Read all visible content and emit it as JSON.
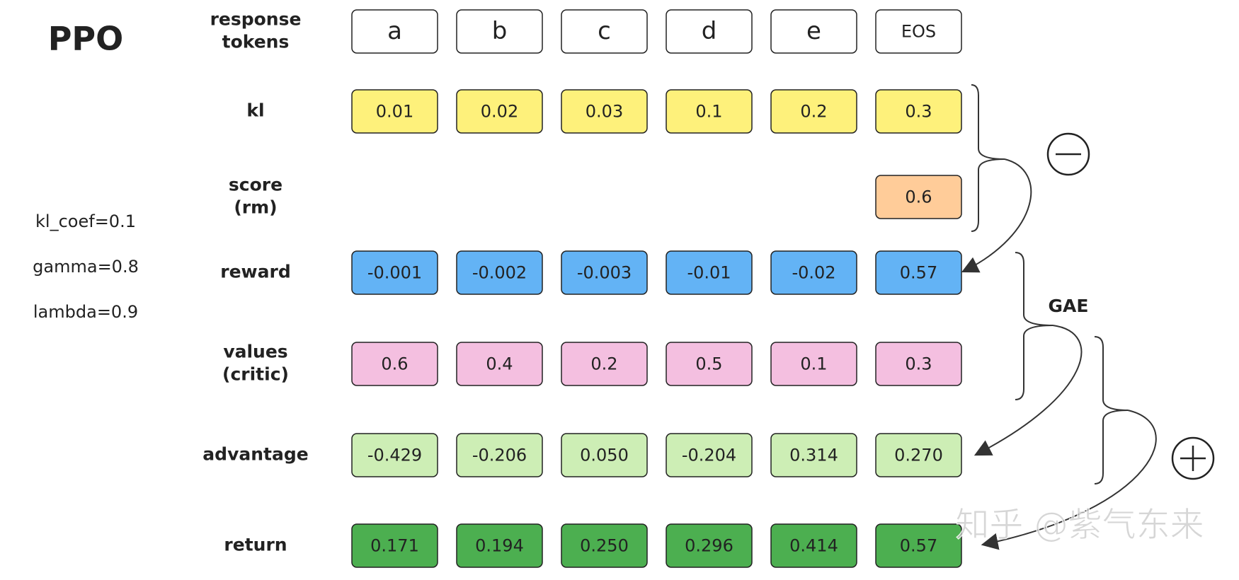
{
  "title": "PPO",
  "params": [
    "kl_coef=0.1",
    "gamma=0.8",
    "lambda=0.9"
  ],
  "rows": [
    {
      "label": [
        "response",
        "tokens"
      ],
      "cells": [
        "a",
        "b",
        "c",
        "d",
        "e",
        "EOS"
      ]
    },
    {
      "label": [
        "kl"
      ],
      "cells": [
        "0.01",
        "0.02",
        "0.03",
        "0.1",
        "0.2",
        "0.3"
      ]
    },
    {
      "label": [
        "score",
        "(rm)"
      ],
      "cells": [
        "0.6"
      ]
    },
    {
      "label": [
        "reward"
      ],
      "cells": [
        "-0.001",
        "-0.002",
        "-0.003",
        "-0.01",
        "-0.02",
        "0.57"
      ]
    },
    {
      "label": [
        "values",
        "(critic)"
      ],
      "cells": [
        "0.6",
        "0.4",
        "0.2",
        "0.5",
        "0.1",
        "0.3"
      ]
    },
    {
      "label": [
        "advantage"
      ],
      "cells": [
        "-0.429",
        "-0.206",
        "0.050",
        "-0.204",
        "0.314",
        "0.270"
      ]
    },
    {
      "label": [
        "return"
      ],
      "cells": [
        "0.171",
        "0.194",
        "0.250",
        "0.296",
        "0.414",
        "0.57"
      ]
    }
  ],
  "gae_label": "GAE",
  "watermark": "知乎 @紫气东来"
}
